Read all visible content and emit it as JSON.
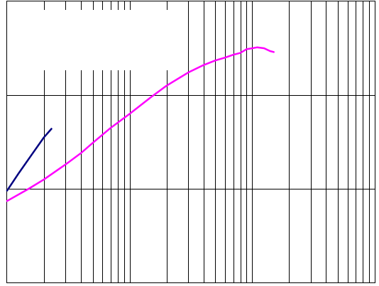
{
  "chart_data": {
    "type": "line",
    "x_scale": "log",
    "xlim": [
      1,
      1000
    ],
    "ylim": [
      0,
      3
    ],
    "grid": true,
    "legend": "none",
    "series": [
      {
        "color": "#000080",
        "points": [
          [
            1.0,
            0.98
          ],
          [
            1.25,
            1.17
          ],
          [
            1.6,
            1.37
          ],
          [
            2.0,
            1.55
          ],
          [
            2.3,
            1.64
          ]
        ]
      },
      {
        "color": "#ff00ff",
        "points": [
          [
            1.0,
            0.87
          ],
          [
            1.5,
            1.0
          ],
          [
            2.0,
            1.1
          ],
          [
            3.0,
            1.26
          ],
          [
            4.0,
            1.38
          ],
          [
            5.0,
            1.49
          ],
          [
            7.0,
            1.65
          ],
          [
            10.0,
            1.8
          ],
          [
            15.0,
            1.98
          ],
          [
            20.0,
            2.1
          ],
          [
            30.0,
            2.24
          ],
          [
            40.0,
            2.32
          ],
          [
            50.0,
            2.37
          ],
          [
            60.0,
            2.4
          ],
          [
            70.0,
            2.43
          ],
          [
            80.0,
            2.45
          ],
          [
            90.0,
            2.49
          ],
          [
            100.0,
            2.5
          ],
          [
            110.0,
            2.51
          ],
          [
            125.0,
            2.5
          ],
          [
            140.0,
            2.47
          ],
          [
            150.0,
            2.46
          ]
        ]
      }
    ]
  }
}
